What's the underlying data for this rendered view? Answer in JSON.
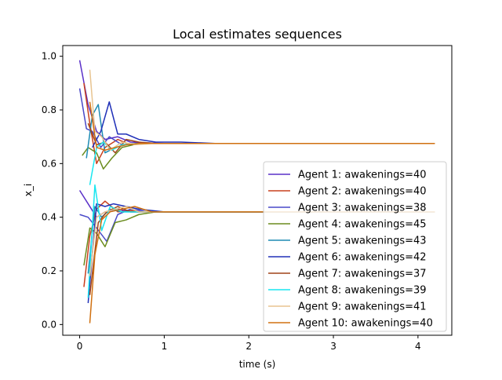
{
  "chart_data": {
    "type": "line",
    "title": "Local estimates sequences",
    "xlabel": "time (s)",
    "ylabel": "x_i",
    "xlim": [
      -0.2,
      4.4
    ],
    "ylim": [
      -0.04,
      1.04
    ],
    "x_ticks": [
      0,
      1,
      2,
      3,
      4
    ],
    "y_ticks": [
      0.0,
      0.2,
      0.4,
      0.6,
      0.8,
      1.0
    ],
    "x_tick_labels": [
      "0",
      "1",
      "2",
      "3",
      "4"
    ],
    "y_tick_labels": [
      "0.0",
      "0.2",
      "0.4",
      "0.6",
      "0.8",
      "1.0"
    ],
    "grid": false,
    "legend_position": "lower-right",
    "series": [
      {
        "name": "Agent 1: awakenings=40",
        "color": "#5a30c8",
        "lines": [
          {
            "x": [
              0.0,
              0.1,
              0.2,
              0.3,
              0.45,
              0.6,
              0.8,
              1.0,
              1.3,
              1.6,
              2.0,
              3.0,
              4.2
            ],
            "y": [
              0.985,
              0.82,
              0.72,
              0.69,
              0.7,
              0.68,
              0.677,
              0.675,
              0.675,
              0.675,
              0.675,
              0.675,
              0.675
            ]
          },
          {
            "x": [
              0.0,
              0.1,
              0.2,
              0.3,
              0.45,
              0.6,
              0.8,
              1.0,
              1.3,
              2.0,
              4.2
            ],
            "y": [
              0.5,
              0.45,
              0.4,
              0.42,
              0.43,
              0.42,
              0.42,
              0.42,
              0.42,
              0.42,
              0.42
            ]
          }
        ]
      },
      {
        "name": "Agent 2: awakenings=40",
        "color": "#c8401e",
        "lines": [
          {
            "x": [
              0.05,
              0.12,
              0.2,
              0.3,
              0.45,
              0.6,
              0.8,
              1.0,
              1.5,
              4.2
            ],
            "y": [
              0.9,
              0.75,
              0.6,
              0.66,
              0.69,
              0.67,
              0.675,
              0.675,
              0.675,
              0.675
            ]
          },
          {
            "x": [
              0.05,
              0.12,
              0.2,
              0.3,
              0.45,
              0.6,
              0.8,
              1.0,
              4.2
            ],
            "y": [
              0.14,
              0.33,
              0.43,
              0.46,
              0.42,
              0.425,
              0.42,
              0.42,
              0.42
            ]
          }
        ]
      },
      {
        "name": "Agent 3: awakenings=38",
        "color": "#4848c8",
        "lines": [
          {
            "x": [
              0.0,
              0.08,
              0.15,
              0.25,
              0.35,
              0.5,
              0.7,
              1.0,
              1.5,
              4.2
            ],
            "y": [
              0.88,
              0.73,
              0.72,
              0.66,
              0.7,
              0.67,
              0.675,
              0.675,
              0.675,
              0.675
            ]
          },
          {
            "x": [
              0.0,
              0.1,
              0.2,
              0.32,
              0.45,
              0.6,
              0.8,
              1.0,
              4.2
            ],
            "y": [
              0.41,
              0.4,
              0.36,
              0.31,
              0.41,
              0.43,
              0.42,
              0.42,
              0.42
            ]
          }
        ]
      },
      {
        "name": "Agent 4: awakenings=45",
        "color": "#6b8c1e",
        "lines": [
          {
            "x": [
              0.03,
              0.1,
              0.2,
              0.28,
              0.38,
              0.5,
              0.7,
              1.0,
              1.5,
              4.2
            ],
            "y": [
              0.63,
              0.66,
              0.64,
              0.58,
              0.62,
              0.66,
              0.675,
              0.675,
              0.675,
              0.675
            ]
          },
          {
            "x": [
              0.05,
              0.12,
              0.2,
              0.3,
              0.42,
              0.55,
              0.7,
              0.9,
              1.0,
              4.2
            ],
            "y": [
              0.22,
              0.36,
              0.34,
              0.29,
              0.38,
              0.39,
              0.41,
              0.42,
              0.42,
              0.42
            ]
          }
        ]
      },
      {
        "name": "Agent 5: awakenings=43",
        "color": "#1e8cb4",
        "lines": [
          {
            "x": [
              0.08,
              0.15,
              0.22,
              0.3,
              0.42,
              0.55,
              0.7,
              1.0,
              4.2
            ],
            "y": [
              0.62,
              0.78,
              0.82,
              0.64,
              0.66,
              0.67,
              0.675,
              0.675,
              0.675
            ]
          },
          {
            "x": [
              0.1,
              0.18,
              0.26,
              0.36,
              0.5,
              0.7,
              1.0,
              4.2
            ],
            "y": [
              0.19,
              0.44,
              0.4,
              0.43,
              0.42,
              0.42,
              0.42,
              0.42
            ]
          }
        ]
      },
      {
        "name": "Agent 6: awakenings=42",
        "color": "#2030b8",
        "lines": [
          {
            "x": [
              0.15,
              0.25,
              0.35,
              0.45,
              0.55,
              0.7,
              0.9,
              1.2,
              1.6,
              4.2
            ],
            "y": [
              0.66,
              0.72,
              0.83,
              0.71,
              0.71,
              0.69,
              0.68,
              0.68,
              0.675,
              0.675
            ]
          },
          {
            "x": [
              0.1,
              0.2,
              0.3,
              0.4,
              0.55,
              0.7,
              1.0,
              4.2
            ],
            "y": [
              0.08,
              0.45,
              0.44,
              0.45,
              0.44,
              0.43,
              0.42,
              0.42
            ]
          }
        ]
      },
      {
        "name": "Agent 7: awakenings=37",
        "color": "#a04418",
        "lines": [
          {
            "x": [
              0.1,
              0.2,
              0.3,
              0.42,
              0.55,
              0.7,
              0.9,
              1.2,
              4.2
            ],
            "y": [
              0.75,
              0.67,
              0.68,
              0.64,
              0.69,
              0.68,
              0.675,
              0.675,
              0.675
            ]
          },
          {
            "x": [
              0.12,
              0.22,
              0.32,
              0.45,
              0.6,
              0.8,
              1.0,
              4.2
            ],
            "y": [
              0.11,
              0.38,
              0.42,
              0.44,
              0.42,
              0.42,
              0.42,
              0.42
            ]
          }
        ]
      },
      {
        "name": "Agent 8: awakenings=39",
        "color": "#18e6f0",
        "lines": [
          {
            "x": [
              0.12,
              0.2,
              0.28,
              0.38,
              0.5,
              0.7,
              1.0,
              4.2
            ],
            "y": [
              0.52,
              0.66,
              0.68,
              0.65,
              0.67,
              0.675,
              0.675,
              0.675
            ]
          },
          {
            "x": [
              0.1,
              0.18,
              0.26,
              0.36,
              0.5,
              0.7,
              1.0,
              4.2
            ],
            "y": [
              0.1,
              0.52,
              0.35,
              0.44,
              0.42,
              0.42,
              0.42,
              0.42
            ]
          }
        ]
      },
      {
        "name": "Agent 9: awakenings=41",
        "color": "#e8c490",
        "lines": [
          {
            "x": [
              0.12,
              0.18,
              0.26,
              0.36,
              0.5,
              0.65,
              0.85,
              1.0,
              4.2
            ],
            "y": [
              0.95,
              0.72,
              0.7,
              0.65,
              0.68,
              0.67,
              0.675,
              0.675,
              0.675
            ]
          },
          {
            "x": [
              0.12,
              0.2,
              0.3,
              0.42,
              0.55,
              0.7,
              1.0,
              4.2
            ],
            "y": [
              0.18,
              0.4,
              0.42,
              0.43,
              0.44,
              0.42,
              0.42,
              0.42
            ]
          }
        ]
      },
      {
        "name": "Agent 10: awakenings=40",
        "color": "#d07010",
        "lines": [
          {
            "x": [
              0.12,
              0.2,
              0.3,
              0.42,
              0.55,
              0.7,
              0.9,
              1.1,
              4.2
            ],
            "y": [
              0.83,
              0.66,
              0.65,
              0.66,
              0.67,
              0.675,
              0.675,
              0.675,
              0.675
            ]
          },
          {
            "x": [
              0.12,
              0.18,
              0.26,
              0.36,
              0.5,
              0.65,
              0.85,
              1.0,
              4.2
            ],
            "y": [
              0.005,
              0.26,
              0.39,
              0.42,
              0.43,
              0.44,
              0.42,
              0.42,
              0.42
            ]
          }
        ]
      }
    ]
  }
}
